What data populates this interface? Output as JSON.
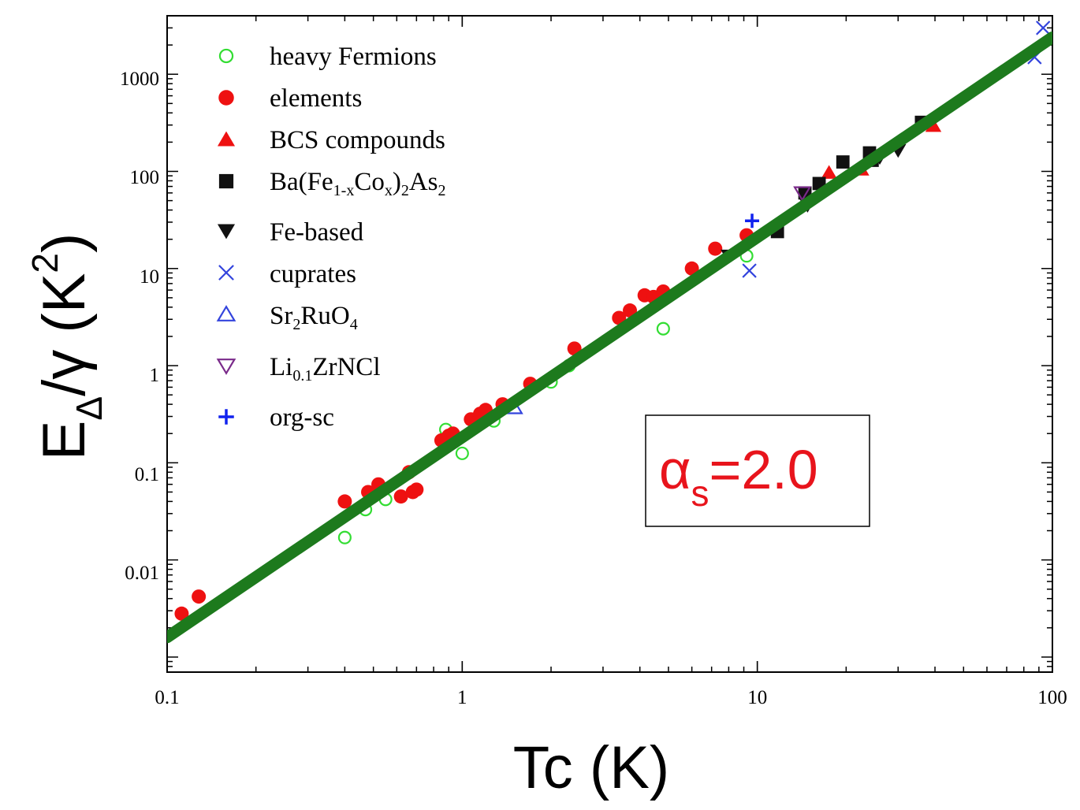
{
  "chart_data": {
    "type": "scatter",
    "x_scale": "log",
    "y_scale": "log",
    "xlim": [
      0.1,
      100
    ],
    "ylim": [
      0.0007,
      4000
    ],
    "x_ticks": [
      {
        "value": 0.1,
        "label": "0.1"
      },
      {
        "value": 1,
        "label": "1"
      },
      {
        "value": 10,
        "label": "10"
      },
      {
        "value": 100,
        "label": "100"
      }
    ],
    "y_ticks": [
      {
        "value": 0.01,
        "label": "0.01"
      },
      {
        "value": 0.1,
        "label": "0.1"
      },
      {
        "value": 1,
        "label": "1"
      },
      {
        "value": 10,
        "label": "10"
      },
      {
        "value": 100,
        "label": "100"
      },
      {
        "value": 1000,
        "label": "1000"
      }
    ],
    "xlabel": "Tc (K)",
    "ylabel": {
      "main": "E",
      "sub": "Δ",
      "mid": "/γ (K",
      "sup": "2",
      "end": ")"
    },
    "annotation": {
      "alpha": "α",
      "sub": "s",
      "rest": "=2.0",
      "color": "#e8141c"
    },
    "fit_line": {
      "x": [
        0.1,
        100
      ],
      "y": [
        0.0016,
        2400
      ],
      "color": "#1d7a1d",
      "label": "α_s = 2.0"
    },
    "legend_labels": {
      "heavy_fermions": "heavy Fermions",
      "elements": "elements",
      "bcs": "BCS compounds",
      "bafe": {
        "p1": "Ba(Fe",
        "s1": "1-x",
        "p2": "Co",
        "s2": "x",
        "p3": ")",
        "s3": "2",
        "p4": "As",
        "s4": "2"
      },
      "fe_based": "Fe-based",
      "cuprates": "cuprates",
      "sr2ruo4": {
        "p1": "Sr",
        "s1": "2",
        "p2": "RuO",
        "s2": "4"
      },
      "lizrncl": {
        "p1": "Li",
        "s1": "0.1",
        "p2": "ZrNCl"
      },
      "org_sc": "org-sc"
    },
    "series": [
      {
        "name": "heavy Fermions",
        "marker": "circle-open",
        "color": "#33dd33",
        "points": [
          [
            0.4,
            0.017
          ],
          [
            0.47,
            0.033
          ],
          [
            0.55,
            0.042
          ],
          [
            0.88,
            0.22
          ],
          [
            1.0,
            0.125
          ],
          [
            1.28,
            0.27
          ],
          [
            2.0,
            0.68
          ],
          [
            2.3,
            1.0
          ],
          [
            4.8,
            2.4
          ],
          [
            9.2,
            13.5
          ]
        ]
      },
      {
        "name": "elements",
        "marker": "circle-filled",
        "color": "#ee1111",
        "points": [
          [
            0.112,
            0.0028
          ],
          [
            0.128,
            0.0042
          ],
          [
            0.4,
            0.04
          ],
          [
            0.48,
            0.05
          ],
          [
            0.52,
            0.06
          ],
          [
            0.62,
            0.045
          ],
          [
            0.66,
            0.08
          ],
          [
            0.68,
            0.05
          ],
          [
            0.7,
            0.053
          ],
          [
            0.85,
            0.17
          ],
          [
            0.9,
            0.19
          ],
          [
            0.93,
            0.2
          ],
          [
            1.07,
            0.28
          ],
          [
            1.15,
            0.32
          ],
          [
            1.2,
            0.35
          ],
          [
            1.37,
            0.4
          ],
          [
            1.7,
            0.65
          ],
          [
            2.4,
            1.5
          ],
          [
            3.4,
            3.1
          ],
          [
            3.7,
            3.7
          ],
          [
            4.15,
            5.3
          ],
          [
            4.45,
            5.1
          ],
          [
            4.8,
            5.8
          ],
          [
            6.0,
            10.0
          ],
          [
            7.2,
            16.0
          ],
          [
            9.2,
            22.0
          ]
        ]
      },
      {
        "name": "BCS compounds",
        "marker": "triangle-up-filled",
        "color": "#ee1111",
        "points": [
          [
            17.5,
            97
          ],
          [
            22.5,
            105
          ],
          [
            39.5,
            295
          ]
        ]
      },
      {
        "name": "Ba(Fe1-xCox)2As2",
        "marker": "square-filled",
        "color": "#111111",
        "points": [
          [
            11.7,
            24
          ],
          [
            14.5,
            60
          ],
          [
            16.2,
            75
          ],
          [
            19.5,
            125
          ],
          [
            24,
            155
          ],
          [
            24.5,
            130
          ],
          [
            36,
            320
          ]
        ]
      },
      {
        "name": "Fe-based",
        "marker": "triangle-down-filled",
        "color": "#111111",
        "points": [
          [
            8.0,
            13.5
          ],
          [
            14.8,
            45
          ],
          [
            26,
            140
          ],
          [
            30,
            165
          ]
        ]
      },
      {
        "name": "cuprates",
        "marker": "cross-x",
        "color": "#3344dd",
        "points": [
          [
            9.4,
            9.5
          ],
          [
            87,
            1500
          ],
          [
            93,
            3000
          ]
        ]
      },
      {
        "name": "Sr2RuO4",
        "marker": "triangle-up-open",
        "color": "#3344dd",
        "points": [
          [
            1.5,
            0.37
          ]
        ]
      },
      {
        "name": "Li0.1ZrNCl",
        "marker": "triangle-down-open",
        "color": "#7a2a8a",
        "points": [
          [
            14.2,
            60
          ]
        ]
      },
      {
        "name": "org-sc",
        "marker": "plus",
        "color": "#1122ee",
        "points": [
          [
            9.6,
            31
          ]
        ]
      }
    ]
  }
}
